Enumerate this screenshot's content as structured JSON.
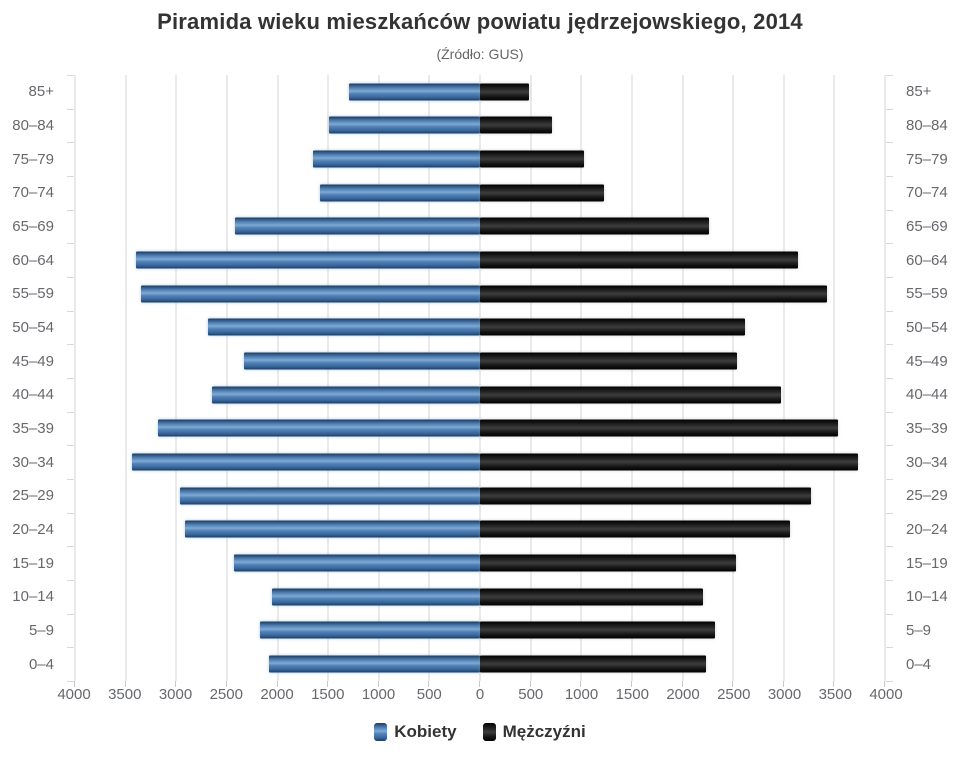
{
  "header": {
    "title": "Piramida wieku mieszkańców powiatu jędrzejowskiego, 2014",
    "subtitle": "(Źródło: GUS)"
  },
  "legend": {
    "women_label": "Kobiety",
    "men_label": "Mężczyźni"
  },
  "colors": {
    "women": "#4f81b5",
    "men": "#111111",
    "grid": "#eaeaea",
    "axis_text": "#66686c",
    "title_text": "#333333"
  },
  "axis": {
    "max": 4000,
    "step": 500,
    "tick_labels": [
      "4000",
      "3500",
      "3000",
      "2500",
      "2000",
      "1500",
      "1000",
      "500",
      "0",
      "500",
      "1000",
      "1500",
      "2000",
      "2500",
      "3000",
      "3500",
      "4000"
    ]
  },
  "chart_data": {
    "type": "bar",
    "variant": "population-pyramid",
    "title": "Piramida wieku mieszkańców powiatu jędrzejowskiego, 2014",
    "subtitle": "(Źródło: GUS)",
    "xlabel": "",
    "ylabel": "",
    "xlim": [
      -4000,
      4000
    ],
    "grid": true,
    "legend_position": "bottom",
    "categories": [
      "85+",
      "80–84",
      "75–79",
      "70–74",
      "65–69",
      "60–64",
      "55–59",
      "50–54",
      "45–49",
      "40–44",
      "35–39",
      "30–34",
      "25–29",
      "20–24",
      "15–19",
      "10–14",
      "5–9",
      "0–4"
    ],
    "series": [
      {
        "name": "Kobiety",
        "side": "left",
        "values": [
          1290,
          1490,
          1650,
          1580,
          2420,
          3400,
          3350,
          2690,
          2330,
          2650,
          3180,
          3440,
          2960,
          2910,
          2430,
          2050,
          2170,
          2080
        ]
      },
      {
        "name": "Mężczyźni",
        "side": "right",
        "values": [
          480,
          710,
          1030,
          1220,
          2260,
          3140,
          3430,
          2620,
          2540,
          2970,
          3540,
          3730,
          3270,
          3060,
          2530,
          2200,
          2320,
          2230
        ]
      }
    ]
  }
}
